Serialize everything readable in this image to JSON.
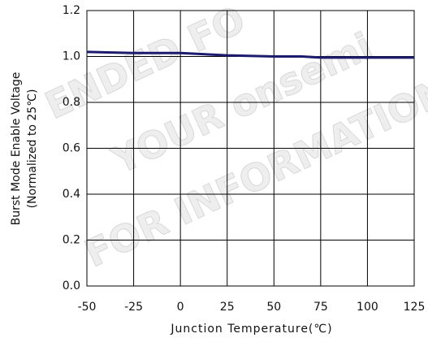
{
  "chart_data": {
    "type": "line",
    "xlabel": "Junction Temperature(℃)",
    "ylabel": [
      "Burst Mode Enable Voltage",
      "(Normalized to 25℃)"
    ],
    "x": [
      -50,
      -25,
      0,
      25,
      50,
      65,
      75,
      100,
      125
    ],
    "series": [
      {
        "color": "#1c1c6e",
        "values": [
          1.02,
          1.015,
          1.015,
          1.005,
          1.0,
          1.0,
          0.995,
          0.995,
          0.995
        ]
      }
    ],
    "xlim": [
      -50,
      125
    ],
    "xticks": [
      -50,
      -25,
      0,
      25,
      50,
      75,
      100,
      125
    ],
    "ylim": [
      0,
      1.2
    ],
    "yticks": [
      {
        "value": 0,
        "label": "0.0"
      },
      {
        "value": 0.2,
        "label": "0.2"
      },
      {
        "value": 0.4,
        "label": "0.4"
      },
      {
        "value": 0.6,
        "label": "0.6"
      },
      {
        "value": 0.8,
        "label": "0.8"
      },
      {
        "value": 1.0,
        "label": "1.0"
      },
      {
        "value": 1.2,
        "label": "1.2"
      }
    ],
    "grid": true,
    "watermark": [
      "ENDED FO",
      "YOUR onsemi",
      "FOR INFORMATION"
    ]
  }
}
